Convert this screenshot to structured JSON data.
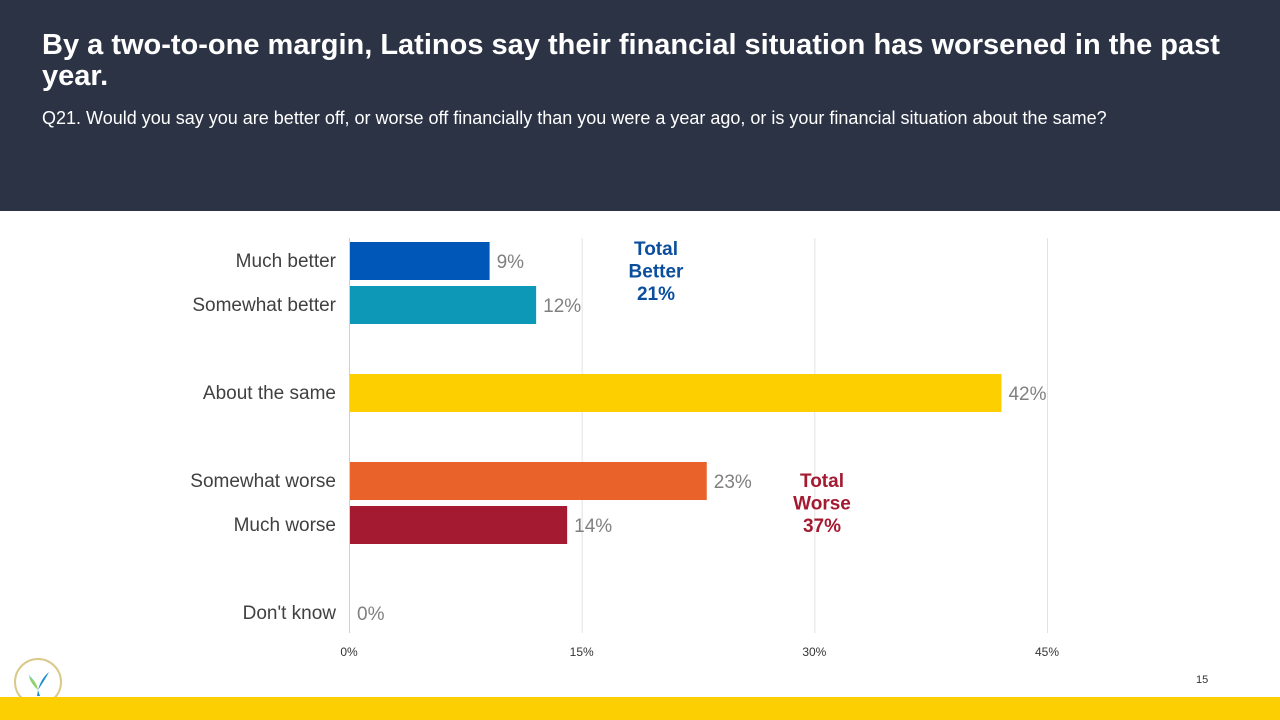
{
  "header": {
    "title": "By a two-to-one margin, Latinos say their financial situation has worsened in the past year.",
    "subtitle": "Q21. Would you say you are better off, or worse off financially than you were a year ago, or is your financial situation about the same?"
  },
  "chart_data": {
    "type": "bar",
    "orientation": "horizontal",
    "categories": [
      "Much better",
      "Somewhat better",
      "About the same",
      "Somewhat worse",
      "Much worse",
      "Don't know"
    ],
    "values": [
      9,
      12,
      42,
      23,
      14,
      0
    ],
    "value_labels": [
      "9%",
      "12%",
      "42%",
      "23%",
      "14%",
      "0%"
    ],
    "colors": [
      "#0057b8",
      "#0e98b7",
      "#fdcf00",
      "#e8622a",
      "#a41a30",
      "#a41a30"
    ],
    "xlim": [
      0,
      45
    ],
    "xticks": [
      0,
      15,
      30,
      45
    ],
    "xtick_labels": [
      "0%",
      "15%",
      "30%",
      "45%"
    ],
    "grid": true,
    "annotations": [
      {
        "lines": [
          "Total",
          "Better",
          "21%"
        ],
        "color": "#0b4e9e"
      },
      {
        "lines": [
          "Total",
          "Worse",
          "37%"
        ],
        "color": "#a41a30"
      }
    ]
  },
  "page_number": "15",
  "logo_icon": "leaf-bird-logo-icon"
}
